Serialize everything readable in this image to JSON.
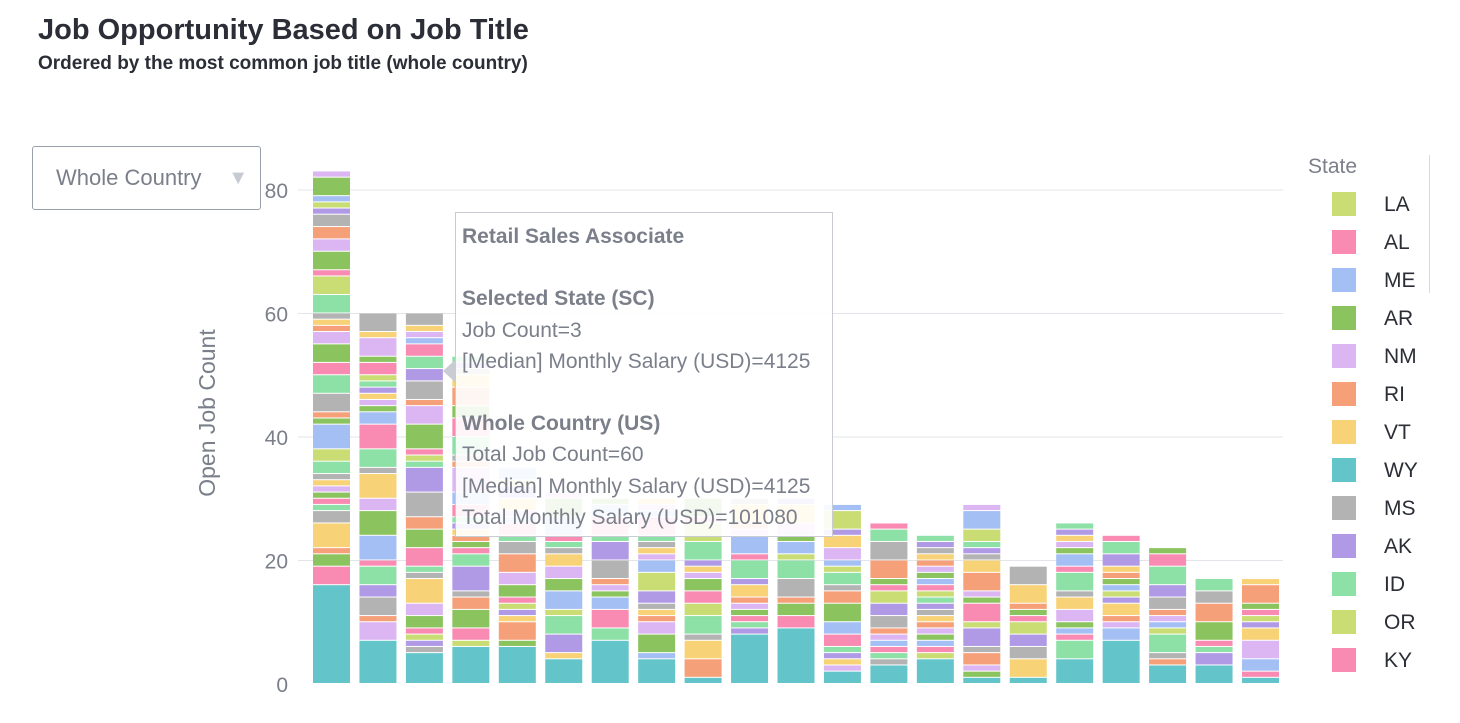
{
  "header": {
    "title": "Job Opportunity Based on Job Title",
    "subtitle": "Ordered by the most common job title (whole country)"
  },
  "dropdown": {
    "value": "Whole Country",
    "caret": "▼"
  },
  "legend": {
    "title": "State",
    "items": [
      {
        "label": "LA",
        "color": "#c9dd74"
      },
      {
        "label": "AL",
        "color": "#f98bb3"
      },
      {
        "label": "ME",
        "color": "#a3bff4"
      },
      {
        "label": "AR",
        "color": "#8bc45e"
      },
      {
        "label": "NM",
        "color": "#dcb6f2"
      },
      {
        "label": "RI",
        "color": "#f6a07a"
      },
      {
        "label": "VT",
        "color": "#f7d276"
      },
      {
        "label": "WY",
        "color": "#63c5c9"
      },
      {
        "label": "MS",
        "color": "#b3b3b3"
      },
      {
        "label": "AK",
        "color": "#b09ae6"
      },
      {
        "label": "ID",
        "color": "#8de0a6"
      },
      {
        "label": "OR",
        "color": "#c9dd74"
      },
      {
        "label": "KY",
        "color": "#f98bb3"
      }
    ]
  },
  "tooltip": {
    "job_title": "Retail Sales Associate",
    "selected_heading": "Selected State (SC)",
    "job_count": "Job Count=3",
    "median_salary": "[Median] Monthly Salary (USD)=4125",
    "country_heading": "Whole Country (US)",
    "total_job_count": "Total Job Count=60",
    "country_median_salary": "[Median] Monthly Salary (USD)=4125",
    "total_salary": "Total Monthly Salary (USD)=101080"
  },
  "chart_data": {
    "type": "bar",
    "stacked": true,
    "ylabel": "Open Job Count",
    "xlabel": "",
    "ylim": [
      0,
      83
    ],
    "yticks": [
      0,
      20,
      40,
      60,
      80
    ],
    "grid": true,
    "legend_position": "right",
    "palette": [
      "#f98bb3",
      "#a3bff4",
      "#8bc45e",
      "#dcb6f2",
      "#f6a07a",
      "#f7d276",
      "#b3b3b3",
      "#b09ae6",
      "#8de0a6",
      "#c9dd74"
    ],
    "base_color": "#63c5c9",
    "bars": [
      {
        "total": 83,
        "base": 16
      },
      {
        "total": 60,
        "base": 7
      },
      {
        "total": 60,
        "base": 5
      },
      {
        "total": 53,
        "base": 6
      },
      {
        "total": 35,
        "base": 6
      },
      {
        "total": 31,
        "base": 4
      },
      {
        "total": 30,
        "base": 7
      },
      {
        "total": 30,
        "base": 4
      },
      {
        "total": 30,
        "base": 1
      },
      {
        "total": 30,
        "base": 8
      },
      {
        "total": 30,
        "base": 9
      },
      {
        "total": 29,
        "base": 2
      },
      {
        "total": 26,
        "base": 3
      },
      {
        "total": 24,
        "base": 4
      },
      {
        "total": 29,
        "base": 1
      },
      {
        "total": 19,
        "base": 1
      },
      {
        "total": 26,
        "base": 4
      },
      {
        "total": 24,
        "base": 7
      },
      {
        "total": 22,
        "base": 3
      },
      {
        "total": 17,
        "base": 3
      },
      {
        "total": 17,
        "base": 1
      }
    ]
  }
}
